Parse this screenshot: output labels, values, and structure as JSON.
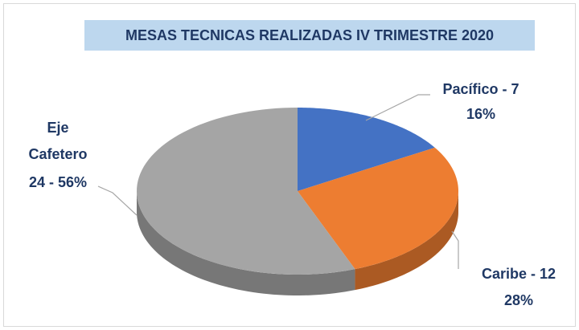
{
  "chart_data": {
    "type": "pie",
    "title": "MESAS TECNICAS REALIZADAS IV TRIMESTRE 2020",
    "values": [
      7,
      12,
      24
    ],
    "value_labels": [
      [
        "Pacífico - 7",
        "16%"
      ],
      [
        "Caribe - 12",
        "28%"
      ],
      [
        "Eje",
        "Cafetero",
        "24 - 56%"
      ]
    ],
    "colors": [
      "#4472c4",
      "#ed7d31",
      "#a5a5a5"
    ]
  }
}
